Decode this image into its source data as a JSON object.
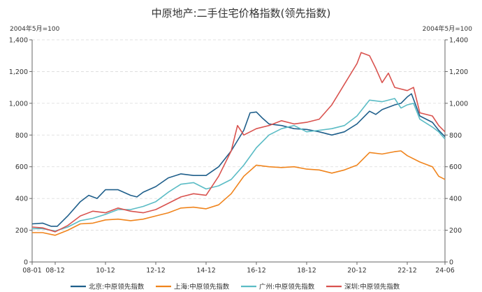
{
  "chart_data": {
    "type": "line",
    "title": "中原地产:二手住宅价格指数(领先指数)",
    "unit_left": "2004年5月=100",
    "unit_right": "2004年5月=100",
    "ylim": [
      0,
      1400
    ],
    "y_ticks": [
      "0",
      "200",
      "400",
      "600",
      "800",
      "1,000",
      "1,200",
      "1,400"
    ],
    "x_range": [
      "2008-01",
      "2024-06"
    ],
    "x_ticks": [
      {
        "date": "2008-01",
        "label": "08-01"
      },
      {
        "date": "2008-12",
        "label": "08-12"
      },
      {
        "date": "2010-12",
        "label": "10-12"
      },
      {
        "date": "2012-12",
        "label": "12-12"
      },
      {
        "date": "2014-12",
        "label": "14-12"
      },
      {
        "date": "2016-12",
        "label": "16-12"
      },
      {
        "date": "2018-12",
        "label": "18-12"
      },
      {
        "date": "2020-12",
        "label": "20-12"
      },
      {
        "date": "2022-12",
        "label": "22-12"
      },
      {
        "date": "2024-06",
        "label": "24-06"
      }
    ],
    "grid": true,
    "legend_position": "bottom",
    "series": [
      {
        "name": "北京:中原领先指数",
        "color": "#1f5f8b",
        "points": [
          [
            "2008-01",
            240
          ],
          [
            "2008-06",
            245
          ],
          [
            "2008-10",
            225
          ],
          [
            "2009-01",
            225
          ],
          [
            "2009-06",
            290
          ],
          [
            "2009-12",
            380
          ],
          [
            "2010-04",
            420
          ],
          [
            "2010-08",
            400
          ],
          [
            "2010-12",
            455
          ],
          [
            "2011-06",
            455
          ],
          [
            "2011-12",
            420
          ],
          [
            "2012-03",
            410
          ],
          [
            "2012-06",
            440
          ],
          [
            "2012-12",
            475
          ],
          [
            "2013-06",
            530
          ],
          [
            "2013-12",
            555
          ],
          [
            "2014-06",
            545
          ],
          [
            "2014-12",
            545
          ],
          [
            "2015-06",
            600
          ],
          [
            "2015-12",
            700
          ],
          [
            "2016-06",
            830
          ],
          [
            "2016-09",
            940
          ],
          [
            "2016-12",
            945
          ],
          [
            "2017-03",
            905
          ],
          [
            "2017-06",
            870
          ],
          [
            "2017-12",
            860
          ],
          [
            "2018-06",
            840
          ],
          [
            "2018-12",
            835
          ],
          [
            "2019-06",
            820
          ],
          [
            "2019-12",
            800
          ],
          [
            "2020-06",
            820
          ],
          [
            "2020-12",
            870
          ],
          [
            "2021-06",
            950
          ],
          [
            "2021-09",
            930
          ],
          [
            "2021-12",
            960
          ],
          [
            "2022-06",
            990
          ],
          [
            "2022-09",
            1000
          ],
          [
            "2022-12",
            1040
          ],
          [
            "2023-02",
            1060
          ],
          [
            "2023-06",
            920
          ],
          [
            "2023-12",
            880
          ],
          [
            "2024-03",
            830
          ],
          [
            "2024-06",
            790
          ]
        ]
      },
      {
        "name": "上海:中原领先指数",
        "color": "#f0841c",
        "points": [
          [
            "2008-01",
            185
          ],
          [
            "2008-06",
            185
          ],
          [
            "2008-12",
            168
          ],
          [
            "2009-06",
            200
          ],
          [
            "2009-12",
            240
          ],
          [
            "2010-06",
            245
          ],
          [
            "2010-12",
            265
          ],
          [
            "2011-06",
            270
          ],
          [
            "2011-12",
            260
          ],
          [
            "2012-06",
            270
          ],
          [
            "2012-12",
            290
          ],
          [
            "2013-06",
            310
          ],
          [
            "2013-12",
            340
          ],
          [
            "2014-06",
            345
          ],
          [
            "2014-12",
            335
          ],
          [
            "2015-06",
            360
          ],
          [
            "2015-12",
            430
          ],
          [
            "2016-06",
            540
          ],
          [
            "2016-12",
            610
          ],
          [
            "2017-06",
            600
          ],
          [
            "2017-12",
            595
          ],
          [
            "2018-06",
            600
          ],
          [
            "2018-12",
            585
          ],
          [
            "2019-06",
            580
          ],
          [
            "2019-12",
            560
          ],
          [
            "2020-06",
            580
          ],
          [
            "2020-12",
            610
          ],
          [
            "2021-06",
            690
          ],
          [
            "2021-12",
            680
          ],
          [
            "2022-06",
            695
          ],
          [
            "2022-09",
            700
          ],
          [
            "2022-12",
            670
          ],
          [
            "2023-06",
            630
          ],
          [
            "2023-12",
            600
          ],
          [
            "2024-03",
            540
          ],
          [
            "2024-06",
            520
          ]
        ]
      },
      {
        "name": "广州:中原领先指数",
        "color": "#5bbcc5",
        "points": [
          [
            "2008-01",
            210
          ],
          [
            "2008-06",
            210
          ],
          [
            "2008-12",
            195
          ],
          [
            "2009-06",
            220
          ],
          [
            "2009-12",
            260
          ],
          [
            "2010-06",
            275
          ],
          [
            "2010-12",
            300
          ],
          [
            "2011-06",
            330
          ],
          [
            "2011-12",
            330
          ],
          [
            "2012-06",
            350
          ],
          [
            "2012-12",
            380
          ],
          [
            "2013-06",
            440
          ],
          [
            "2013-12",
            490
          ],
          [
            "2014-06",
            500
          ],
          [
            "2014-12",
            460
          ],
          [
            "2015-06",
            480
          ],
          [
            "2015-12",
            520
          ],
          [
            "2016-06",
            610
          ],
          [
            "2016-12",
            720
          ],
          [
            "2017-06",
            800
          ],
          [
            "2017-12",
            840
          ],
          [
            "2018-06",
            860
          ],
          [
            "2018-12",
            820
          ],
          [
            "2019-06",
            830
          ],
          [
            "2019-12",
            840
          ],
          [
            "2020-06",
            860
          ],
          [
            "2020-12",
            920
          ],
          [
            "2021-06",
            1020
          ],
          [
            "2021-12",
            1010
          ],
          [
            "2022-06",
            1030
          ],
          [
            "2022-09",
            970
          ],
          [
            "2022-12",
            990
          ],
          [
            "2023-03",
            1000
          ],
          [
            "2023-06",
            900
          ],
          [
            "2023-12",
            850
          ],
          [
            "2024-03",
            820
          ],
          [
            "2024-06",
            775
          ]
        ]
      },
      {
        "name": "深圳:中原领先指数",
        "color": "#d9534f",
        "points": [
          [
            "2008-01",
            220
          ],
          [
            "2008-06",
            215
          ],
          [
            "2008-12",
            190
          ],
          [
            "2009-06",
            230
          ],
          [
            "2009-12",
            290
          ],
          [
            "2010-06",
            320
          ],
          [
            "2010-12",
            310
          ],
          [
            "2011-06",
            340
          ],
          [
            "2011-12",
            320
          ],
          [
            "2012-06",
            310
          ],
          [
            "2012-12",
            330
          ],
          [
            "2013-06",
            370
          ],
          [
            "2013-12",
            410
          ],
          [
            "2014-06",
            430
          ],
          [
            "2014-12",
            420
          ],
          [
            "2015-06",
            540
          ],
          [
            "2015-12",
            700
          ],
          [
            "2016-03",
            860
          ],
          [
            "2016-06",
            800
          ],
          [
            "2016-12",
            840
          ],
          [
            "2017-06",
            860
          ],
          [
            "2017-12",
            890
          ],
          [
            "2018-06",
            870
          ],
          [
            "2018-12",
            880
          ],
          [
            "2019-06",
            900
          ],
          [
            "2019-12",
            990
          ],
          [
            "2020-06",
            1120
          ],
          [
            "2020-12",
            1250
          ],
          [
            "2021-02",
            1320
          ],
          [
            "2021-06",
            1300
          ],
          [
            "2021-09",
            1220
          ],
          [
            "2021-12",
            1130
          ],
          [
            "2022-03",
            1190
          ],
          [
            "2022-06",
            1100
          ],
          [
            "2022-12",
            1080
          ],
          [
            "2023-03",
            1100
          ],
          [
            "2023-06",
            940
          ],
          [
            "2023-12",
            920
          ],
          [
            "2024-03",
            860
          ],
          [
            "2024-06",
            820
          ]
        ]
      }
    ]
  }
}
